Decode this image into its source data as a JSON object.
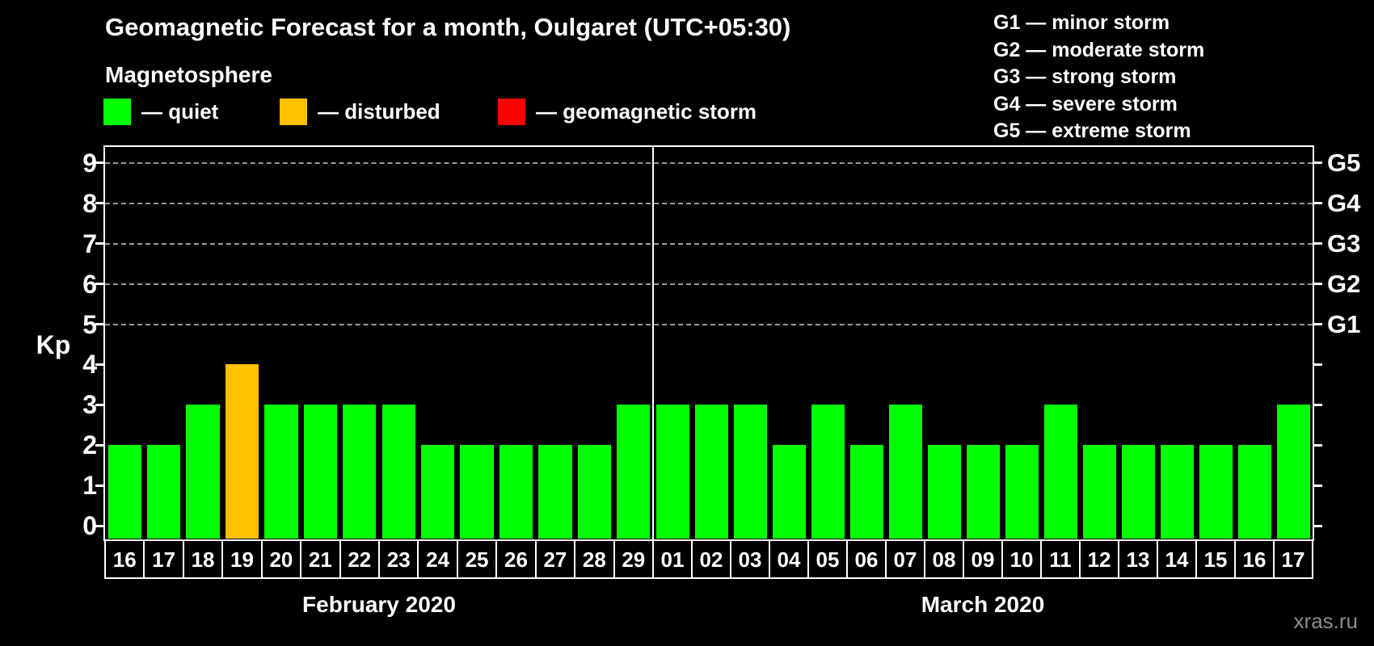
{
  "title": "Geomagnetic Forecast for a month, Oulgaret (UTC+05:30)",
  "subtitle": "Magnetosphere",
  "legend": {
    "items": [
      {
        "label": "— quiet",
        "color": "#00ff00",
        "status": "quiet"
      },
      {
        "label": "— disturbed",
        "color": "#ffc000",
        "status": "disturbed"
      },
      {
        "label": "— geomagnetic storm",
        "color": "#ff0000",
        "status": "storm"
      }
    ]
  },
  "g_legend": [
    "G1 — minor storm",
    "G2 — moderate storm",
    "G3 — strong storm",
    "G4 — severe storm",
    "G5 — extreme storm"
  ],
  "watermark": "xras.ru",
  "chart_data": {
    "type": "bar",
    "ylabel": "Kp",
    "ylim": [
      -0.35,
      9.4
    ],
    "y_ticks": [
      0,
      1,
      2,
      3,
      4,
      5,
      6,
      7,
      8,
      9
    ],
    "grid_kp": [
      5,
      6,
      7,
      8,
      9
    ],
    "grid_on": true,
    "right_axis": [
      {
        "label": "G5",
        "kp": 9
      },
      {
        "label": "G4",
        "kp": 8
      },
      {
        "label": "G3",
        "kp": 7
      },
      {
        "label": "G2",
        "kp": 6
      },
      {
        "label": "G1",
        "kp": 5
      }
    ],
    "status_colors": {
      "quiet": "#00ff00",
      "disturbed": "#ffc000",
      "storm": "#ff0000"
    },
    "months": [
      {
        "label": "February 2020",
        "days": [
          "16",
          "17",
          "18",
          "19",
          "20",
          "21",
          "22",
          "23",
          "24",
          "25",
          "26",
          "27",
          "28",
          "29"
        ],
        "values": [
          2,
          2,
          3,
          4,
          3,
          3,
          3,
          3,
          2,
          2,
          2,
          2,
          2,
          3
        ],
        "statuses": [
          "quiet",
          "quiet",
          "quiet",
          "disturbed",
          "quiet",
          "quiet",
          "quiet",
          "quiet",
          "quiet",
          "quiet",
          "quiet",
          "quiet",
          "quiet",
          "quiet"
        ]
      },
      {
        "label": "March 2020",
        "days": [
          "01",
          "02",
          "03",
          "04",
          "05",
          "06",
          "07",
          "08",
          "09",
          "10",
          "11",
          "12",
          "13",
          "14",
          "15",
          "16",
          "17"
        ],
        "values": [
          3,
          3,
          3,
          2,
          3,
          2,
          3,
          2,
          2,
          2,
          3,
          2,
          2,
          2,
          2,
          2,
          3
        ],
        "statuses": [
          "quiet",
          "quiet",
          "quiet",
          "quiet",
          "quiet",
          "quiet",
          "quiet",
          "quiet",
          "quiet",
          "quiet",
          "quiet",
          "quiet",
          "quiet",
          "quiet",
          "quiet",
          "quiet",
          "quiet"
        ]
      }
    ]
  }
}
